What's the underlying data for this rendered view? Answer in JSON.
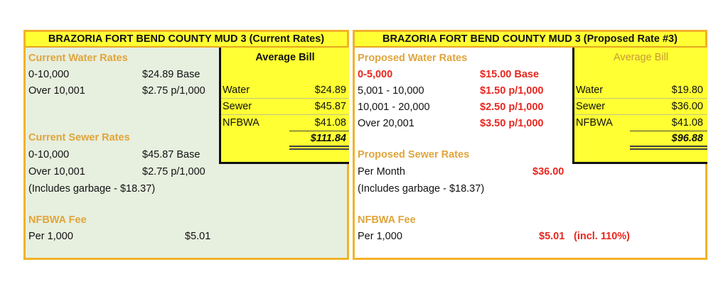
{
  "current": {
    "title": "BRAZORIA FORT BEND COUNTY MUD 3 (Current Rates)",
    "water_heading": "Current Water Rates",
    "water_rows": [
      {
        "range": "0-10,000",
        "rate": "$24.89 Base"
      },
      {
        "range": "Over 10,001",
        "rate": "$2.75 p/1,000"
      }
    ],
    "sewer_heading": "Current Sewer Rates",
    "sewer_rows": [
      {
        "range": "0-10,000",
        "rate": "$45.87 Base"
      },
      {
        "range": "Over 10,001",
        "rate": "$2.75 p/1,000"
      }
    ],
    "sewer_note": "(Includes garbage - $18.37)",
    "nfbwa_heading": "NFBWA Fee",
    "nfbwa_label": "Per 1,000",
    "nfbwa_value": "$5.01",
    "bill": {
      "heading": "Average Bill",
      "rows": [
        {
          "label": "Water",
          "value": "$24.89"
        },
        {
          "label": "Sewer",
          "value": "$45.87"
        },
        {
          "label": "NFBWA",
          "value": "$41.08"
        }
      ],
      "total": "$111.84"
    }
  },
  "proposed": {
    "title": "BRAZORIA FORT BEND COUNTY MUD 3 (Proposed Rate #3)",
    "water_heading": "Proposed Water Rates",
    "water_rows": [
      {
        "range": "0-5,000",
        "rate": "$15.00 Base"
      },
      {
        "range": "5,001 - 10,000",
        "rate": "$1.50 p/1,000"
      },
      {
        "range": "10,001 - 20,000",
        "rate": "$2.50 p/1,000"
      },
      {
        "range": "Over 20,001",
        "rate": "$3.50 p/1,000"
      }
    ],
    "sewer_heading": "Proposed Sewer Rates",
    "sewer_label": "Per Month",
    "sewer_value": "$36.00",
    "sewer_note": "(Includes garbage - $18.37)",
    "nfbwa_heading": "NFBWA Fee",
    "nfbwa_label": "Per 1,000",
    "nfbwa_value": "$5.01",
    "nfbwa_note": "(incl. 110%)",
    "bill": {
      "heading": "Average Bill",
      "rows": [
        {
          "label": "Water",
          "value": "$19.80"
        },
        {
          "label": "Sewer",
          "value": "$36.00"
        },
        {
          "label": "NFBWA",
          "value": "$41.08"
        }
      ],
      "total": "$96.88"
    }
  },
  "colors": {
    "title_bg": "#ffff33",
    "border": "#f2b22a",
    "section_heading": "#e0a53a",
    "proposed_value": "#e8271f",
    "current_bg": "#e7efdf"
  }
}
